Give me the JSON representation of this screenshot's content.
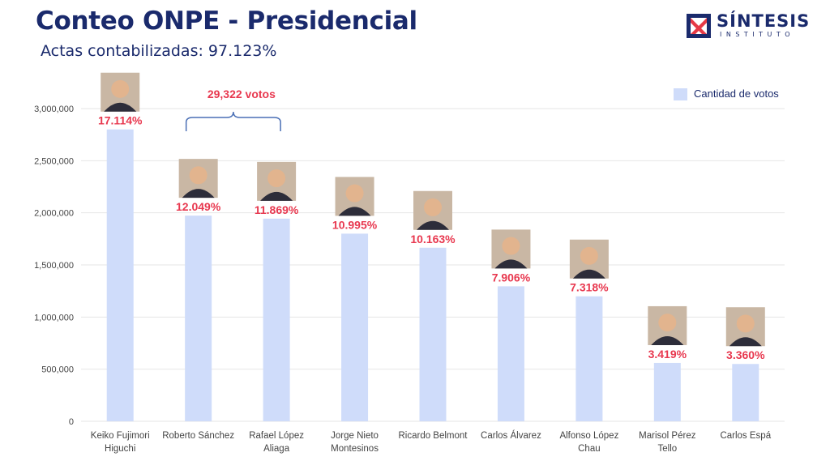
{
  "header": {
    "title": "Conteo ONPE - Presidencial",
    "subtitle": "Actas contabilizadas: 97.123%"
  },
  "logo": {
    "word": "SÍNTESIS",
    "sub": "INSTITUTO",
    "colors": {
      "navy": "#1a2a6c",
      "red": "#e63946"
    }
  },
  "annotation": {
    "text": "29,322 votos",
    "from": "Roberto Sánchez",
    "to": "Rafael López Aliaga"
  },
  "colors": {
    "bar": "#cfdcfa",
    "pct": "#e8384f",
    "axis_text": "#444444",
    "grid": "#e6e6e6"
  },
  "chart_data": {
    "type": "bar",
    "title": "Conteo ONPE - Presidencial",
    "xlabel": "",
    "ylabel": "",
    "ylim": [
      0,
      3000000
    ],
    "grid": true,
    "legend": "top-right",
    "yticks": [
      "0",
      "500,000",
      "1,000,000",
      "1,500,000",
      "2,000,000",
      "2,500,000",
      "3,000,000"
    ],
    "categories": [
      [
        "Keiko Fujimori",
        "Higuchi"
      ],
      [
        "Roberto Sánchez"
      ],
      [
        "Rafael López",
        "Aliaga"
      ],
      [
        "Jorge Nieto",
        "Montesinos"
      ],
      [
        "Ricardo Belmont"
      ],
      [
        "Carlos Álvarez"
      ],
      [
        "Alfonso López",
        "Chau"
      ],
      [
        "Marisol Pérez",
        "Tello"
      ],
      [
        "Carlos Espá"
      ]
    ],
    "series": [
      {
        "name": "Cantidad de votos",
        "values": [
          2800000,
          1973000,
          1944000,
          1800000,
          1665000,
          1295000,
          1199000,
          560000,
          550000
        ],
        "labels": [
          "17.114%",
          "12.049%",
          "11.869%",
          "10.995%",
          "10.163%",
          "7.906%",
          "7.318%",
          "3.419%",
          "3.360%"
        ]
      }
    ]
  }
}
